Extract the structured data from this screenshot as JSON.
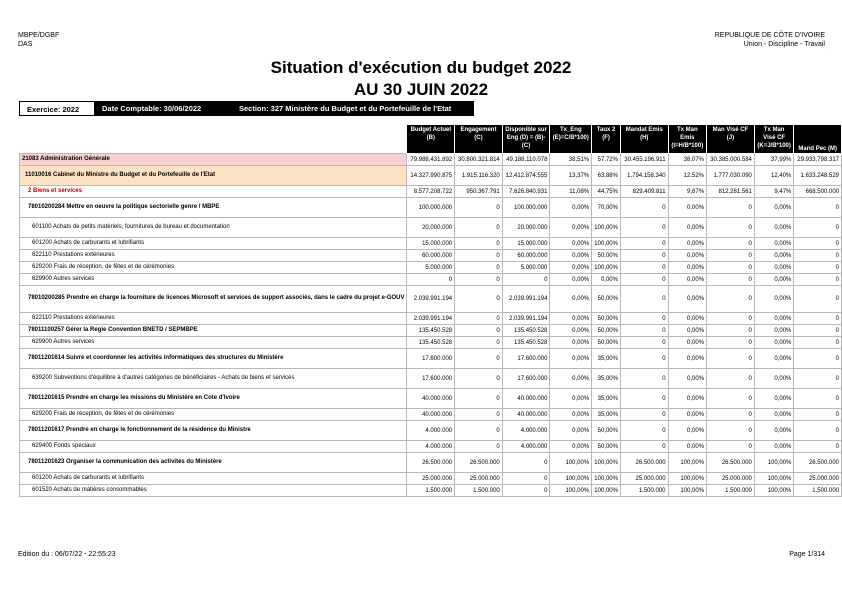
{
  "header": {
    "left_line1": "MBPE/DGBF",
    "left_line2": "DAS",
    "right_line1": "REPUBLIQUE DE CÔTE D'IVOIRE",
    "right_line2": "Union - Discipline - Travail",
    "right_mark": "'"
  },
  "title": {
    "line1": "Situation d'exécution du budget 2022",
    "line2": "AU 30 JUIN 2022"
  },
  "infobar": {
    "exercice": "Exercice: 2022",
    "date_comptable": "Date Comptable: 30/06/2022",
    "section": "Section: 327 Ministère du Budget et du Portefeuille de l'Etat"
  },
  "columns": [
    "Budget Actuel (B)",
    "Engagement (C)",
    "Disponible sur Eng (D) = (B)-(C)",
    "Tx_Eng (E)=C/B*100)",
    "Taux 2 (F)",
    "Mandat Emis (H)",
    "Tx Man Emis (I=H/B*100)",
    "Man Visé CF (J)",
    "Tx Man Visé CF (K=J/B*100)",
    "Mand Pec (M)"
  ],
  "rows": [
    {
      "type": "admin",
      "h": "h",
      "label": "21083 Administration Générale",
      "v": [
        "79.988.431.892",
        "30.800.321.814",
        "49.188.110.078",
        "38,51%",
        "57,72%",
        "30.455.196.911",
        "38,07%",
        "30.385.000.584",
        "37,99%",
        "29.933.798.317"
      ]
    },
    {
      "type": "cab",
      "h": "h2",
      "label": "11010016 Cabinet du Ministre du Budget et du Portefeuille de l'Etat",
      "v": [
        "14.327.990.875",
        "1.915.116.320",
        "12.412.874.555",
        "13,37%",
        "63,88%",
        "1.794.158.340",
        "12,52%",
        "1.777.030.090",
        "12,40%",
        "1.633.248.529"
      ]
    },
    {
      "type": "cat",
      "h": "h",
      "label": "2 Biens et services",
      "v": [
        "8.577.208.722",
        "950.367.791",
        "7.626.840.931",
        "11,08%",
        "44,75%",
        "829.409.811",
        "9,67%",
        "812.281.561",
        "9,47%",
        "668.500.000"
      ]
    },
    {
      "type": "act",
      "h": "h2",
      "label": "78010200284 Mettre en oeuvre la politique sectorielle genre / MBPE",
      "v": [
        "100.000.000",
        "0",
        "100.000.000",
        "0,00%",
        "70,00%",
        "0",
        "0,00%",
        "0",
        "0,00%",
        "0"
      ]
    },
    {
      "type": "line",
      "h": "h2",
      "label": "601100 Achats de petits matériels, fournitures de bureau et documentation",
      "v": [
        "20.000.000",
        "0",
        "20.000.000",
        "0,00%",
        "100,00%",
        "0",
        "0,00%",
        "0",
        "0,00%",
        "0"
      ]
    },
    {
      "type": "line",
      "h": "h",
      "label": "601200 Achats de carburants et lubrifiants",
      "v": [
        "15.000.000",
        "0",
        "15.000.000",
        "0,00%",
        "100,00%",
        "0",
        "0,00%",
        "0",
        "0,00%",
        "0"
      ]
    },
    {
      "type": "line",
      "h": "h",
      "label": "622110 Prestations extérieures",
      "v": [
        "60.000.000",
        "0",
        "60.000.000",
        "0,00%",
        "50,00%",
        "0",
        "0,00%",
        "0",
        "0,00%",
        "0"
      ]
    },
    {
      "type": "line",
      "h": "h",
      "label": "629200 Frais de réception, de fêtes et de cérémonies",
      "v": [
        "5.000.000",
        "0",
        "5.000.000",
        "0,00%",
        "100,00%",
        "0",
        "0,00%",
        "0",
        "0,00%",
        "0"
      ]
    },
    {
      "type": "line",
      "h": "h",
      "label": "629900 Autres services",
      "v": [
        "0",
        "0",
        "0",
        "0,00%",
        "0,00%",
        "0",
        "0,00%",
        "0",
        "0,00%",
        "0"
      ]
    },
    {
      "type": "act",
      "h": "h3",
      "label": "78010200285 Prendre en charge la fourniture de licences Microsoft et services de support associés, dans le cadre du projet e-GOUV",
      "v": [
        "2.039.991.194",
        "0",
        "2.039.991.194",
        "0,00%",
        "50,00%",
        "0",
        "0,00%",
        "0",
        "0,00%",
        "0"
      ]
    },
    {
      "type": "line",
      "h": "h",
      "label": "622110 Prestations extérieures",
      "v": [
        "2.039.991.194",
        "0",
        "2.039.991.194",
        "0,00%",
        "50,00%",
        "0",
        "0,00%",
        "0",
        "0,00%",
        "0"
      ]
    },
    {
      "type": "act",
      "h": "h",
      "label": "78011100257 Gérer la Regie Convention BNETD / SEPMBPE",
      "v": [
        "135.450.528",
        "0",
        "135.450.528",
        "0,00%",
        "50,00%",
        "0",
        "0,00%",
        "0",
        "0,00%",
        "0"
      ]
    },
    {
      "type": "line",
      "h": "h",
      "label": "629900 Autres services",
      "v": [
        "135.450.528",
        "0",
        "135.450.528",
        "0,00%",
        "50,00%",
        "0",
        "0,00%",
        "0",
        "0,00%",
        "0"
      ]
    },
    {
      "type": "act",
      "h": "h2",
      "label": "78011201614 Suivre et coordonner les activités informatiques des structures du Ministère",
      "v": [
        "17.600.000",
        "0",
        "17.600.000",
        "0,00%",
        "35,00%",
        "0",
        "0,00%",
        "0",
        "0,00%",
        "0"
      ]
    },
    {
      "type": "line",
      "h": "h2",
      "label": "639200 Subventions d'équilibre à d'autres catégories de bénéficiaires - Achats de biens et services",
      "v": [
        "17.600.000",
        "0",
        "17.600.000",
        "0,00%",
        "35,00%",
        "0",
        "0,00%",
        "0",
        "0,00%",
        "0"
      ]
    },
    {
      "type": "act",
      "h": "h2",
      "label": "78011201615 Prendre en charge les missions du Ministère en Cote d'Ivoire",
      "v": [
        "40.000.000",
        "0",
        "40.000.000",
        "0,00%",
        "35,00%",
        "0",
        "0,00%",
        "0",
        "0,00%",
        "0"
      ]
    },
    {
      "type": "line",
      "h": "h",
      "label": "629200 Frais de réception, de fêtes et de cérémonies",
      "v": [
        "40.000.000",
        "0",
        "40.000.000",
        "0,00%",
        "35,00%",
        "0",
        "0,00%",
        "0",
        "0,00%",
        "0"
      ]
    },
    {
      "type": "act",
      "h": "h2",
      "label": "78011201617 Prendre en charge le fonctionnement de la résidence du Ministre",
      "v": [
        "4.000.000",
        "0",
        "4.000.000",
        "0,00%",
        "50,00%",
        "0",
        "0,00%",
        "0",
        "0,00%",
        "0"
      ]
    },
    {
      "type": "line",
      "h": "h",
      "label": "629400 Fonds spéciaux",
      "v": [
        "4.000.000",
        "0",
        "4.000.000",
        "0,00%",
        "50,00%",
        "0",
        "0,00%",
        "0",
        "0,00%",
        "0"
      ]
    },
    {
      "type": "act",
      "h": "h2",
      "label": "78011201623 Organiser la communication des activités du Ministère",
      "v": [
        "26.500.000",
        "26.500.000",
        "0",
        "100,00%",
        "100,00%",
        "26.500.000",
        "100,00%",
        "26.500.000",
        "100,00%",
        "26.500.000"
      ]
    },
    {
      "type": "line",
      "h": "h",
      "label": "601200 Achats de carburants et lubrifiants",
      "v": [
        "25.000.000",
        "25.000.000",
        "0",
        "100,00%",
        "100,00%",
        "25.000.000",
        "100,00%",
        "25.000.000",
        "100,00%",
        "25.000.000"
      ]
    },
    {
      "type": "line",
      "h": "h",
      "label": "601520 Achats de matières consommables",
      "v": [
        "1.500.000",
        "1.500.000",
        "0",
        "100,00%",
        "100,00%",
        "1.500.000",
        "100,00%",
        "1.500.000",
        "100,00%",
        "1.500.000"
      ]
    }
  ],
  "footer": {
    "edition": "Edition du : 06/07/22 - 22:55:23",
    "page": "Page 1/314"
  }
}
